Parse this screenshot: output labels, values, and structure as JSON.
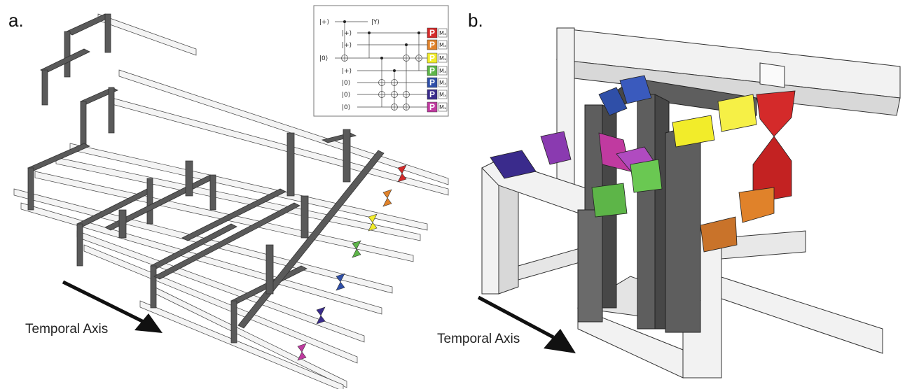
{
  "panel_a": {
    "label": "a.",
    "axis_label": "Temporal Axis",
    "circuit": {
      "qubits": [
        {
          "input": "|+⟩",
          "output": "|Y⟩",
          "gate": "",
          "measure": ""
        },
        {
          "input": "|+⟩",
          "output": "",
          "gate": "P",
          "measure": "Mₓ"
        },
        {
          "input": "|+⟩",
          "output": "",
          "gate": "P",
          "measure": "Mₓ"
        },
        {
          "input": "|0⟩",
          "output": "",
          "gate": "P",
          "measure": "Mₓ"
        },
        {
          "input": "|+⟩",
          "output": "",
          "gate": "P",
          "measure": "Mₓ"
        },
        {
          "input": "|0⟩",
          "output": "",
          "gate": "P",
          "measure": "Mₓ"
        },
        {
          "input": "|0⟩",
          "output": "",
          "gate": "P",
          "measure": "Mₓ"
        },
        {
          "input": "|0⟩",
          "output": "",
          "gate": "P",
          "measure": "Mₓ"
        }
      ]
    }
  },
  "panel_b": {
    "label": "b.",
    "axis_label": "Temporal Axis"
  },
  "colors": {
    "red": "#d42a2a",
    "orange": "#e0822a",
    "yellow": "#f2ec2a",
    "green": "#5db548",
    "blue": "#2f4fa8",
    "indigo": "#3a2b8c",
    "magenta": "#c03aa0",
    "violet": "#8a3ab0",
    "dark_tube": "#5a5a5a",
    "light_tube": "#f2f2f2"
  }
}
